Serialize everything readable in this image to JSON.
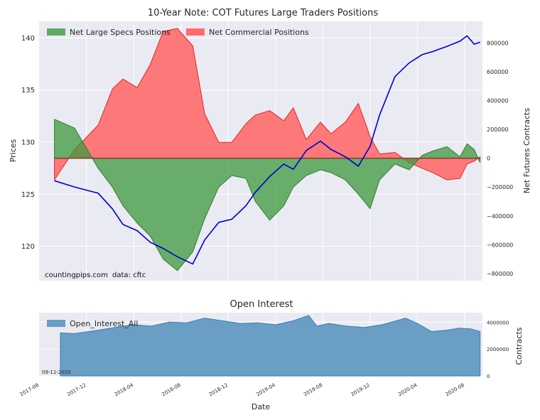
{
  "colors": {
    "panel_bg": "#eaeaf2",
    "grid": "#ffffff",
    "specs_fill": "#3c9a3c",
    "specs_line": "#2e7d2e",
    "comm_fill": "#ff6b6b",
    "comm_line": "#e32626",
    "price_line": "#0000cc",
    "oi_fill": "#6a9ec5",
    "oi_line": "#3d7bb0"
  },
  "watermark": {
    "site": "countingpips.com",
    "source": "data: cftc"
  },
  "chart_data": [
    {
      "type": "area",
      "title": "10-Year Note: COT Futures Large Traders Positions",
      "ylabel_left": "Prices",
      "ylabel_right": "Net Futures Contracts",
      "xlim": [
        0,
        37.5
      ],
      "ylim_left": [
        116.7,
        141.6
      ],
      "ylim_right": [
        -850000,
        950000
      ],
      "yticks_left": [
        "120",
        "125",
        "130",
        "135",
        "140"
      ],
      "yticks_left_values": [
        120,
        125,
        130,
        135,
        140
      ],
      "yticks_right": [
        "−800000",
        "−600000",
        "−400000",
        "−200000",
        "0",
        "200000",
        "400000",
        "600000",
        "800000"
      ],
      "yticks_right_values": [
        -800000,
        -600000,
        -400000,
        -200000,
        0,
        200000,
        400000,
        600000,
        800000
      ],
      "legend": [
        "Net Large Specs Positions",
        "Net Commercial Positions"
      ],
      "legend_position": "upper-left",
      "x_month_index": [
        1.3,
        3,
        5,
        6.2,
        7.1,
        8.3,
        9.4,
        10.5,
        11.7,
        13,
        14,
        15.2,
        16.3,
        17.5,
        18.3,
        19.5,
        20.7,
        21.5,
        22.6,
        23.8,
        24.7,
        25.9,
        27,
        28,
        28.8,
        30.1,
        31.3,
        32.4,
        33.3,
        34.5,
        35.6,
        36.2,
        36.8,
        37.3
      ],
      "series": [
        {
          "name": "Net Large Specs Positions",
          "values": [
            270000,
            210000,
            -70000,
            -200000,
            -330000,
            -450000,
            -540000,
            -700000,
            -780000,
            -650000,
            -420000,
            -200000,
            -120000,
            -140000,
            -300000,
            -430000,
            -330000,
            -200000,
            -120000,
            -80000,
            -100000,
            -150000,
            -250000,
            -350000,
            -150000,
            -40000,
            -80000,
            20000,
            50000,
            80000,
            10000,
            100000,
            60000,
            -30000
          ]
        },
        {
          "name": "Net Commercial Positions",
          "values": [
            -150000,
            60000,
            230000,
            480000,
            550000,
            490000,
            650000,
            880000,
            900000,
            780000,
            310000,
            110000,
            110000,
            240000,
            300000,
            330000,
            260000,
            350000,
            130000,
            250000,
            170000,
            250000,
            380000,
            150000,
            30000,
            40000,
            -30000,
            -70000,
            -100000,
            -150000,
            -140000,
            -40000,
            -20000,
            10000
          ]
        },
        {
          "name": "Price",
          "axis": "left",
          "values": [
            126.3,
            125.7,
            125.1,
            123.6,
            122.1,
            121.5,
            120.4,
            119.8,
            119.0,
            118.3,
            120.6,
            122.3,
            122.6,
            123.9,
            125.2,
            126.7,
            127.9,
            127.4,
            129.2,
            130.1,
            129.3,
            128.6,
            127.7,
            129.6,
            132.6,
            136.3,
            137.6,
            138.4,
            138.7,
            139.2,
            139.7,
            140.2,
            139.4,
            139.6
          ]
        }
      ]
    },
    {
      "type": "area",
      "title": "Open Interest",
      "ylabel_right": "Contracts",
      "xlabel": "Date",
      "ylim": [
        0,
        4700000
      ],
      "yticks": [
        "0",
        "2000000",
        "4000000"
      ],
      "yticks_values": [
        0,
        2000000,
        4000000
      ],
      "xticks": [
        "2017-08",
        "2017-12",
        "2018-04",
        "2018-08",
        "2018-12",
        "2019-04",
        "2019-08",
        "2019-12",
        "2020-04",
        "2020-08"
      ],
      "xticks_pos": [
        0,
        4,
        8,
        12,
        16,
        20,
        24,
        28,
        32,
        36
      ],
      "legend": [
        "Open_Interest_All"
      ],
      "legend_position": "upper-left",
      "date_label": "09-11-2020",
      "x_month_index": [
        1.8,
        3,
        5,
        6.4,
        8,
        9.5,
        11,
        12.5,
        14,
        15.5,
        17,
        18.5,
        20,
        21.5,
        22.8,
        23.5,
        24.5,
        26,
        27.5,
        29,
        30,
        31,
        32,
        33.2,
        34.5,
        35.5,
        36.5,
        37.3
      ],
      "values": [
        3200000,
        3150000,
        3400000,
        3600000,
        3800000,
        3700000,
        4000000,
        3950000,
        4300000,
        4100000,
        3900000,
        3950000,
        3800000,
        4100000,
        4500000,
        3700000,
        3900000,
        3700000,
        3600000,
        3800000,
        4050000,
        4300000,
        3900000,
        3300000,
        3400000,
        3550000,
        3500000,
        3300000
      ]
    }
  ]
}
